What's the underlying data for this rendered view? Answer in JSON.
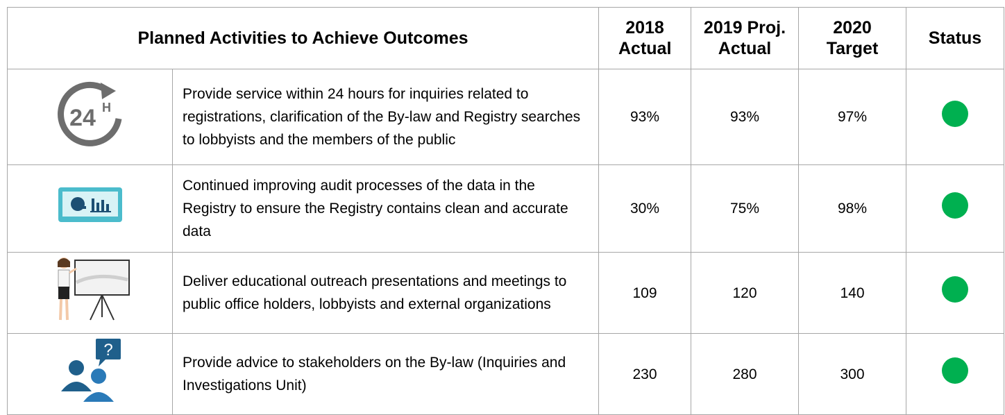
{
  "table": {
    "header": [
      "Planned Activities to Achieve Outcomes",
      "2018 Actual",
      "2019 Proj. Actual",
      "2020 Target",
      "Status"
    ],
    "rows": [
      {
        "activity": "Provide service within 24 hours for inquiries related to registrations, clarification of the By-law and Registry searches to lobbyists and the members of the public",
        "values": [
          "93%",
          "93%",
          "97%"
        ],
        "status_color": "#00b050"
      },
      {
        "activity": "Continued improving audit processes of the data in the Registry to ensure the Registry contains clean and accurate data",
        "values": [
          "30%",
          "75%",
          "98%"
        ],
        "status_color": "#00b050"
      },
      {
        "activity": "Deliver educational outreach presentations and meetings to public office holders, lobbyists and external organizations",
        "values": [
          "109",
          "120",
          "140"
        ],
        "status_color": "#00b050"
      },
      {
        "activity": "Provide advice to stakeholders on the By-law (Inquiries and Investigations Unit)",
        "values": [
          "230",
          "280",
          "300"
        ],
        "status_color": "#00b050"
      }
    ]
  }
}
